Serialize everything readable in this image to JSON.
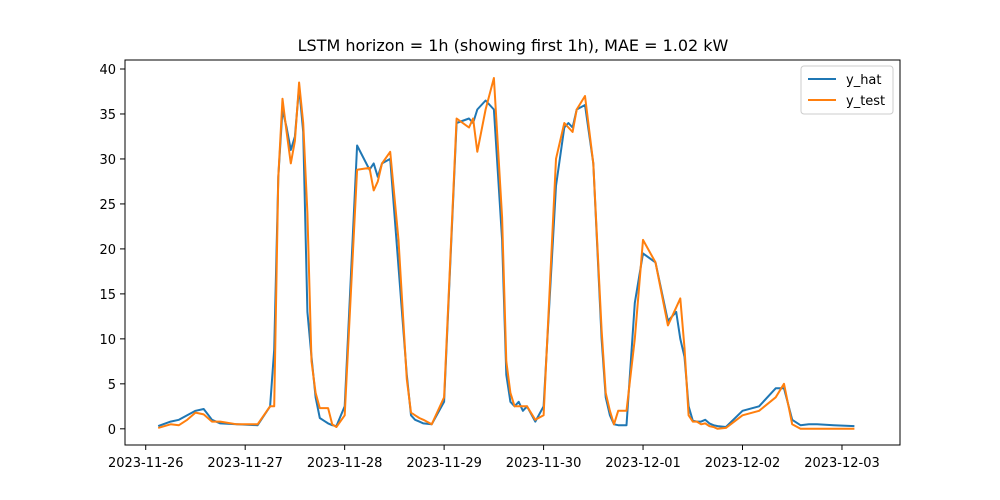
{
  "chart_data": {
    "type": "line",
    "title": "LSTM horizon = 1h (showing first 1h), MAE = 1.02 kW",
    "xlabel": "",
    "ylabel": "",
    "grid": false,
    "legend_position": "top-right",
    "xlim": [
      "2023-11-25T19:00",
      "2023-12-03T14:00"
    ],
    "ylim": [
      -1.8,
      41
    ],
    "x_ticks": [
      "2023-11-26",
      "2023-11-27",
      "2023-11-28",
      "2023-11-29",
      "2023-11-30",
      "2023-12-01",
      "2023-12-02",
      "2023-12-03"
    ],
    "y_ticks": [
      0,
      5,
      10,
      15,
      20,
      25,
      30,
      35,
      40
    ],
    "x": [
      "2023-11-26T03:00",
      "2023-11-26T06:00",
      "2023-11-26T08:00",
      "2023-11-26T10:00",
      "2023-11-26T12:00",
      "2023-11-26T14:00",
      "2023-11-26T16:00",
      "2023-11-26T18:00",
      "2023-11-26T22:00",
      "2023-11-27T03:00",
      "2023-11-27T06:00",
      "2023-11-27T07:00",
      "2023-11-27T08:00",
      "2023-11-27T09:00",
      "2023-11-27T10:00",
      "2023-11-27T11:00",
      "2023-11-27T12:00",
      "2023-11-27T13:00",
      "2023-11-27T14:00",
      "2023-11-27T15:00",
      "2023-11-27T16:00",
      "2023-11-27T17:00",
      "2023-11-27T18:00",
      "2023-11-27T19:00",
      "2023-11-27T20:00",
      "2023-11-27T21:00",
      "2023-11-27T22:00",
      "2023-11-28T00:00",
      "2023-11-28T03:00",
      "2023-11-28T06:00",
      "2023-11-28T07:00",
      "2023-11-28T08:00",
      "2023-11-28T09:00",
      "2023-11-28T11:00",
      "2023-11-28T13:00",
      "2023-11-28T15:00",
      "2023-11-28T16:00",
      "2023-11-28T17:00",
      "2023-11-28T18:00",
      "2023-11-28T19:00",
      "2023-11-28T21:00",
      "2023-11-29T00:00",
      "2023-11-29T03:00",
      "2023-11-29T06:00",
      "2023-11-29T07:00",
      "2023-11-29T08:00",
      "2023-11-29T10:00",
      "2023-11-29T12:00",
      "2023-11-29T14:00",
      "2023-11-29T15:00",
      "2023-11-29T16:00",
      "2023-11-29T17:00",
      "2023-11-29T18:00",
      "2023-11-29T19:00",
      "2023-11-29T20:00",
      "2023-11-29T22:00",
      "2023-11-30T00:00",
      "2023-11-30T03:00",
      "2023-11-30T05:00",
      "2023-11-30T06:00",
      "2023-11-30T07:00",
      "2023-11-30T08:00",
      "2023-11-30T10:00",
      "2023-11-30T12:00",
      "2023-11-30T14:00",
      "2023-11-30T15:00",
      "2023-11-30T16:00",
      "2023-11-30T17:00",
      "2023-11-30T18:00",
      "2023-11-30T19:00",
      "2023-11-30T20:00",
      "2023-11-30T22:00",
      "2023-12-01T00:00",
      "2023-12-01T03:00",
      "2023-12-01T06:00",
      "2023-12-01T08:00",
      "2023-12-01T09:00",
      "2023-12-01T10:00",
      "2023-12-01T11:00",
      "2023-12-01T12:00",
      "2023-12-01T13:00",
      "2023-12-01T14:00",
      "2023-12-01T15:00",
      "2023-12-01T16:00",
      "2023-12-01T17:00",
      "2023-12-01T18:00",
      "2023-12-01T20:00",
      "2023-12-02T00:00",
      "2023-12-02T04:00",
      "2023-12-02T08:00",
      "2023-12-02T10:00",
      "2023-12-02T12:00",
      "2023-12-02T14:00",
      "2023-12-02T16:00",
      "2023-12-02T18:00",
      "2023-12-02T22:00",
      "2023-12-03T03:00"
    ],
    "series": [
      {
        "name": "y_hat",
        "color": "#1f77b4",
        "values": [
          0.3,
          0.8,
          1.0,
          1.5,
          2.0,
          2.2,
          1.0,
          0.6,
          0.5,
          0.4,
          2.5,
          8.8,
          28.0,
          35.5,
          33.5,
          31.0,
          32.5,
          38.0,
          33.0,
          13.0,
          8.0,
          3.5,
          1.2,
          0.9,
          0.6,
          0.4,
          0.3,
          2.5,
          31.5,
          28.8,
          29.5,
          28.0,
          29.5,
          30.0,
          18.0,
          6.0,
          1.5,
          1.0,
          0.8,
          0.6,
          0.5,
          3.0,
          34.0,
          34.5,
          34.0,
          35.5,
          36.5,
          35.5,
          21.0,
          6.0,
          3.0,
          2.5,
          3.0,
          2.0,
          2.5,
          0.8,
          2.5,
          27.0,
          33.5,
          34.0,
          33.5,
          35.5,
          36.0,
          29.5,
          10.0,
          3.5,
          1.5,
          0.5,
          0.4,
          0.4,
          0.4,
          14.0,
          19.5,
          18.5,
          12.0,
          13.0,
          10.0,
          8.0,
          2.5,
          0.9,
          0.8,
          0.8,
          1.0,
          0.6,
          0.4,
          0.3,
          0.2,
          2.0,
          2.5,
          4.5,
          4.5,
          1.0,
          0.4,
          0.5,
          0.5,
          0.4,
          0.3
        ]
      },
      {
        "name": "y_test",
        "color": "#ff7f0e",
        "values": [
          0.1,
          0.5,
          0.4,
          1.0,
          1.8,
          1.6,
          0.8,
          0.8,
          0.5,
          0.5,
          2.5,
          2.5,
          28.0,
          36.7,
          33.0,
          29.5,
          32.0,
          38.5,
          34.0,
          24.0,
          7.5,
          4.0,
          2.3,
          2.3,
          2.3,
          0.5,
          0.2,
          1.5,
          28.8,
          29.0,
          26.5,
          27.5,
          29.5,
          30.8,
          21.0,
          5.5,
          1.8,
          1.5,
          1.2,
          1.0,
          0.5,
          3.5,
          34.5,
          33.5,
          34.5,
          30.8,
          35.5,
          39.0,
          23.5,
          7.5,
          4.0,
          2.5,
          2.5,
          2.5,
          2.5,
          1.0,
          1.5,
          30.0,
          34.0,
          33.5,
          33.0,
          35.5,
          37.0,
          29.5,
          11.0,
          4.0,
          2.0,
          0.5,
          2.0,
          2.0,
          2.0,
          10.0,
          21.0,
          18.5,
          11.5,
          13.5,
          14.5,
          9.0,
          1.5,
          0.8,
          0.8,
          0.5,
          0.6,
          0.3,
          0.2,
          0.0,
          0.1,
          1.5,
          2.0,
          3.5,
          5.0,
          0.5,
          0.0,
          0.0,
          0.0,
          0.0,
          0.0
        ]
      }
    ]
  }
}
